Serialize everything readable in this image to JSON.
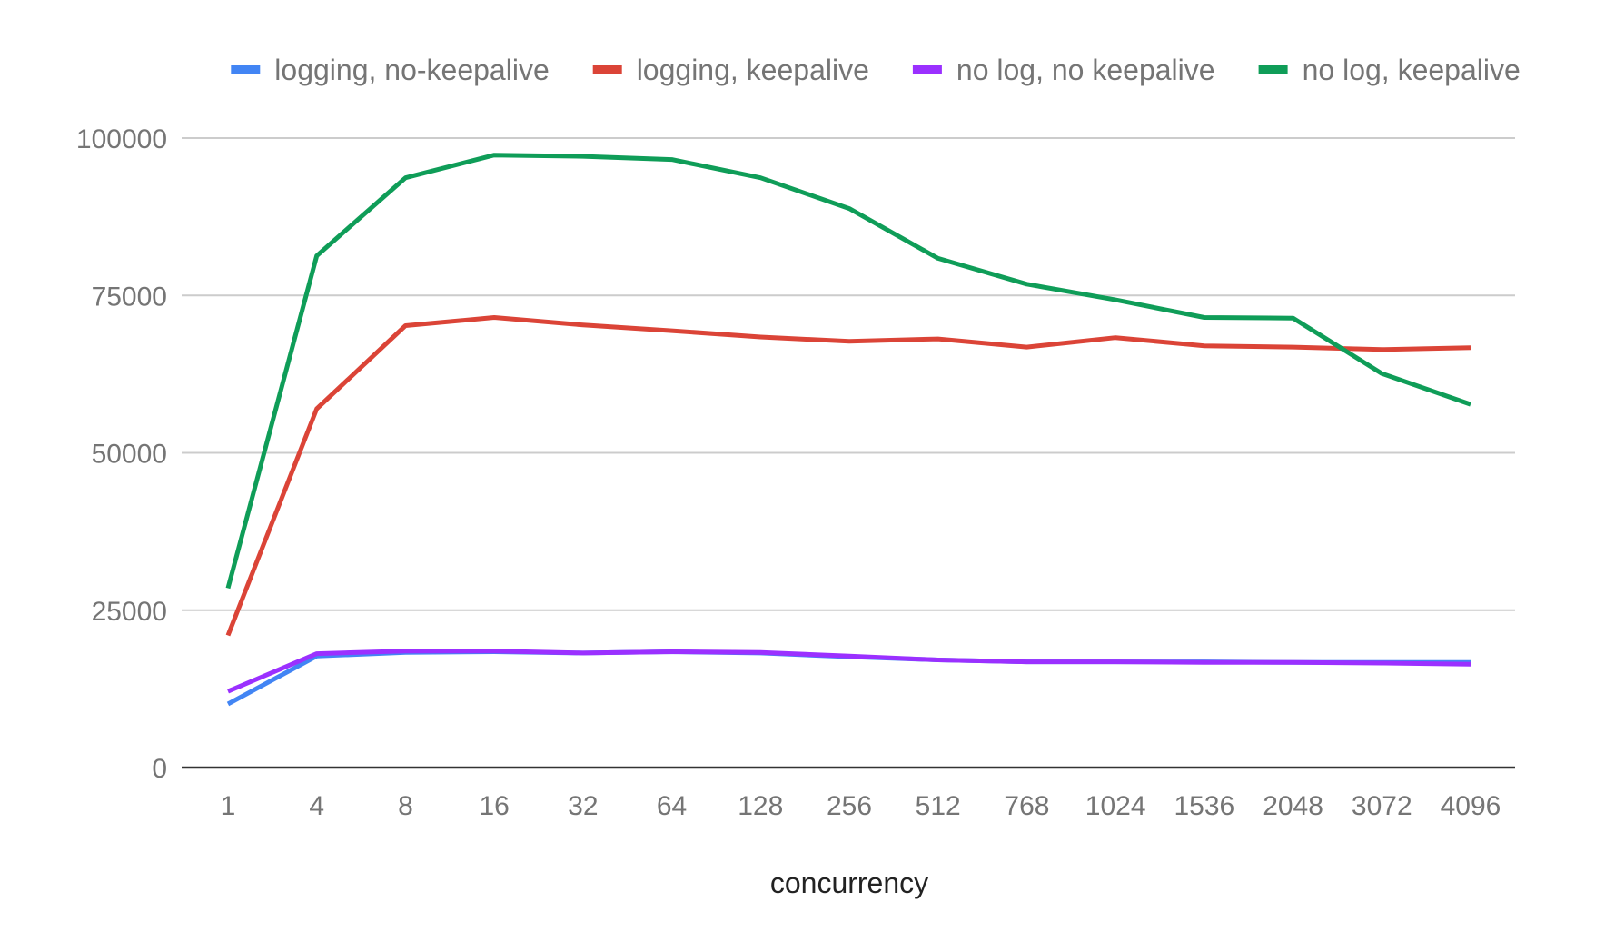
{
  "chart_data": {
    "type": "line",
    "title": "",
    "xlabel": "concurrency",
    "ylabel": "",
    "categories": [
      "1",
      "4",
      "8",
      "16",
      "32",
      "64",
      "128",
      "256",
      "512",
      "768",
      "1024",
      "1536",
      "2048",
      "3072",
      "4096"
    ],
    "ylim": [
      0,
      100000
    ],
    "yticks": [
      0,
      25000,
      50000,
      75000,
      100000
    ],
    "ytick_labels": [
      "0",
      "25000",
      "50000",
      "75000",
      "100000"
    ],
    "grid": true,
    "legend_position": "top",
    "series": [
      {
        "name": "logging, no-keepalive",
        "color": "#4285f4",
        "values": [
          10100,
          17700,
          18300,
          18400,
          18200,
          18400,
          18200,
          17600,
          17100,
          16800,
          16800,
          16800,
          16700,
          16700,
          16700
        ]
      },
      {
        "name": "logging, keepalive",
        "color": "#db4437",
        "values": [
          21000,
          57000,
          70200,
          71500,
          70300,
          69400,
          68400,
          67700,
          68100,
          66800,
          68300,
          67000,
          66800,
          66400,
          66700
        ]
      },
      {
        "name": "no log, no keepalive",
        "color": "#9b30ff",
        "values": [
          12100,
          18100,
          18500,
          18500,
          18200,
          18400,
          18300,
          17700,
          17100,
          16800,
          16800,
          16700,
          16700,
          16600,
          16400
        ]
      },
      {
        "name": "no log, keepalive",
        "color": "#0f9d58",
        "values": [
          28500,
          81300,
          93700,
          97300,
          97100,
          96600,
          93700,
          88800,
          80900,
          76800,
          74300,
          71500,
          71400,
          62600,
          57700
        ]
      }
    ]
  }
}
